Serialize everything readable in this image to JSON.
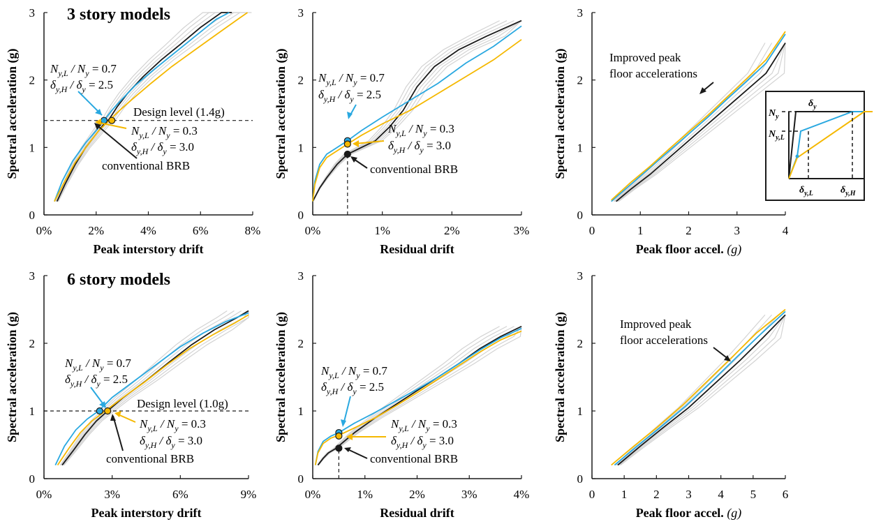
{
  "colors": {
    "conventional": "#1a1a1a",
    "ratio07": "#29a8e0",
    "ratio03": "#f5b800",
    "background_runs": "#d3d3d3"
  },
  "chart_data": [
    {
      "id": "p1",
      "type": "line",
      "title": "3 story models",
      "xlabel": "Peak interstory drift",
      "xlabel_unit": "",
      "ylabel": "Spectral acceleration (g)",
      "x_ticks": [
        "0%",
        "2%",
        "4%",
        "6%",
        "8%"
      ],
      "x_tick_values": [
        0,
        2,
        4,
        6,
        8
      ],
      "y_ticks": [
        "0",
        "1",
        "2",
        "3"
      ],
      "y_tick_values": [
        0,
        1,
        2,
        3
      ],
      "xlim": [
        0,
        8
      ],
      "ylim": [
        0,
        3
      ],
      "series": [
        {
          "key": "conventional",
          "x": [
            0.5,
            0.8,
            1.2,
            1.6,
            2.0,
            2.3,
            2.5,
            2.8,
            3.2,
            3.8,
            4.5,
            5.2,
            6.0,
            6.8,
            7.2
          ],
          "y": [
            0.2,
            0.45,
            0.75,
            1.0,
            1.2,
            1.35,
            1.42,
            1.6,
            1.8,
            2.05,
            2.3,
            2.52,
            2.78,
            3.0,
            3.0
          ]
        },
        {
          "key": "ratio07",
          "x": [
            0.4,
            0.7,
            1.1,
            1.6,
            2.0,
            2.3,
            2.6,
            3.0,
            3.5,
            4.2,
            5.0,
            5.8,
            6.6,
            7.1
          ],
          "y": [
            0.2,
            0.5,
            0.8,
            1.07,
            1.25,
            1.4,
            1.55,
            1.72,
            1.92,
            2.15,
            2.4,
            2.65,
            2.9,
            3.0
          ]
        },
        {
          "key": "ratio03",
          "x": [
            0.4,
            0.8,
            1.2,
            1.7,
            2.1,
            2.5,
            2.9,
            3.4,
            4.1,
            4.9,
            5.8,
            6.7,
            7.5,
            7.8
          ],
          "y": [
            0.2,
            0.5,
            0.78,
            1.05,
            1.25,
            1.4,
            1.55,
            1.72,
            1.95,
            2.2,
            2.45,
            2.7,
            2.92,
            3.0
          ]
        }
      ],
      "design_level": {
        "label": "Design level (1.4g)",
        "value": 1.4
      },
      "markers": [
        {
          "key": "ratio07",
          "x": 2.3,
          "y": 1.4
        },
        {
          "key": "ratio03",
          "x": 2.6,
          "y": 1.4
        }
      ],
      "annotations": {
        "a1_line1": "N",
        "a1_sub1": "y,L",
        "a1_mid": " / N",
        "a1_sub2": "y",
        "a1_val": " = 0.7",
        "a2_line1": "δ",
        "a2_sub1": "y,H",
        "a2_mid": " / δ",
        "a2_sub2": "y",
        "a2_val": " = 2.5",
        "b1_val": " = 0.3",
        "b2_val": " = 3.0",
        "conventional_label": "conventional BRB"
      }
    },
    {
      "id": "p2",
      "type": "line",
      "title": "",
      "xlabel": "Residual drift",
      "xlabel_unit": "",
      "ylabel": "Spectral acceleration (g)",
      "x_ticks": [
        "0%",
        "1%",
        "2%",
        "3%"
      ],
      "x_tick_values": [
        0,
        1,
        2,
        3
      ],
      "y_ticks": [
        "0",
        "1",
        "2",
        "3"
      ],
      "y_tick_values": [
        0,
        1,
        2,
        3
      ],
      "xlim": [
        0,
        3
      ],
      "ylim": [
        0,
        3
      ],
      "series": [
        {
          "key": "conventional",
          "x": [
            0,
            0.1,
            0.2,
            0.35,
            0.5,
            0.7,
            0.9,
            1.1,
            1.3,
            1.5,
            1.75,
            2.1,
            2.5,
            3.0
          ],
          "y": [
            0.2,
            0.4,
            0.55,
            0.75,
            0.9,
            1.0,
            1.1,
            1.3,
            1.55,
            1.9,
            2.2,
            2.45,
            2.65,
            2.88
          ]
        },
        {
          "key": "ratio07",
          "x": [
            0,
            0.03,
            0.1,
            0.2,
            0.35,
            0.5,
            0.7,
            1.0,
            1.4,
            1.8,
            2.2,
            2.6,
            3.0
          ],
          "y": [
            0.2,
            0.5,
            0.75,
            0.9,
            1.0,
            1.1,
            1.25,
            1.45,
            1.7,
            1.95,
            2.25,
            2.5,
            2.8
          ]
        },
        {
          "key": "ratio03",
          "x": [
            0,
            0.03,
            0.1,
            0.2,
            0.35,
            0.5,
            0.7,
            1.0,
            1.4,
            1.8,
            2.2,
            2.6,
            3.0
          ],
          "y": [
            0.2,
            0.45,
            0.7,
            0.85,
            0.95,
            1.05,
            1.18,
            1.35,
            1.55,
            1.8,
            2.05,
            2.3,
            2.6
          ]
        }
      ],
      "vline": {
        "x": 0.5
      },
      "markers": [
        {
          "key": "ratio07",
          "x": 0.5,
          "y": 1.1
        },
        {
          "key": "ratio03",
          "x": 0.5,
          "y": 1.05
        },
        {
          "key": "conventional",
          "x": 0.5,
          "y": 0.9
        }
      ],
      "annotations": {
        "b1_val": " = 0.3",
        "b2_val": " = 3.0",
        "a1_val": " = 0.7",
        "a2_val": " = 2.5",
        "conventional_label": "conventional BRB"
      }
    },
    {
      "id": "p3",
      "type": "line",
      "title": "",
      "xlabel": "Peak floor accel. ",
      "xlabel_unit": "(g)",
      "ylabel": "Spectral acceleration (g)",
      "x_ticks": [
        "0",
        "1",
        "2",
        "3",
        "4"
      ],
      "x_tick_values": [
        0,
        1,
        2,
        3,
        4
      ],
      "y_ticks": [
        "0",
        "1",
        "2",
        "3"
      ],
      "y_tick_values": [
        0,
        1,
        2,
        3
      ],
      "xlim": [
        0,
        4
      ],
      "ylim": [
        0,
        3
      ],
      "series": [
        {
          "key": "conventional",
          "x": [
            0.5,
            0.8,
            1.2,
            1.6,
            2.0,
            2.4,
            2.8,
            3.2,
            3.6,
            4.0
          ],
          "y": [
            0.2,
            0.38,
            0.6,
            0.85,
            1.1,
            1.35,
            1.6,
            1.85,
            2.1,
            2.55
          ]
        },
        {
          "key": "ratio07",
          "x": [
            0.4,
            0.8,
            1.2,
            1.6,
            2.0,
            2.4,
            2.8,
            3.2,
            3.6,
            4.0
          ],
          "y": [
            0.2,
            0.45,
            0.7,
            0.95,
            1.2,
            1.45,
            1.72,
            1.98,
            2.25,
            2.68
          ]
        },
        {
          "key": "ratio03",
          "x": [
            0.4,
            0.8,
            1.2,
            1.6,
            2.0,
            2.4,
            2.8,
            3.2,
            3.6,
            4.0
          ],
          "y": [
            0.22,
            0.48,
            0.72,
            0.98,
            1.23,
            1.48,
            1.75,
            2.02,
            2.3,
            2.72
          ]
        }
      ],
      "annotation": "Improved peak floor accelerations"
    },
    {
      "id": "p4",
      "type": "line",
      "title": "6 story models",
      "xlabel": "Peak interstory drift",
      "xlabel_unit": "",
      "ylabel": "Spectral acceleration (g)",
      "x_ticks": [
        "0%",
        "3%",
        "6%",
        "9%"
      ],
      "x_tick_values": [
        0,
        3,
        6,
        9
      ],
      "y_ticks": [
        "0",
        "1",
        "2",
        "3"
      ],
      "y_tick_values": [
        0,
        1,
        2,
        3
      ],
      "xlim": [
        0,
        9
      ],
      "ylim": [
        0,
        3
      ],
      "series": [
        {
          "key": "conventional",
          "x": [
            0.8,
            1.3,
            1.8,
            2.3,
            2.8,
            3.5,
            4.5,
            5.5,
            6.5,
            7.5,
            8.5,
            9.0
          ],
          "y": [
            0.2,
            0.42,
            0.65,
            0.85,
            1.0,
            1.2,
            1.45,
            1.72,
            1.98,
            2.2,
            2.38,
            2.48
          ]
        },
        {
          "key": "ratio07",
          "x": [
            0.5,
            0.9,
            1.4,
            1.9,
            2.4,
            3.0,
            4.0,
            5.0,
            6.0,
            7.0,
            8.0,
            9.0
          ],
          "y": [
            0.2,
            0.48,
            0.72,
            0.88,
            1.0,
            1.2,
            1.45,
            1.7,
            1.95,
            2.15,
            2.32,
            2.45
          ]
        },
        {
          "key": "ratio03",
          "x": [
            0.6,
            1.1,
            1.6,
            2.1,
            2.7,
            3.4,
            4.4,
            5.4,
            6.4,
            7.4,
            8.4,
            9.0
          ],
          "y": [
            0.2,
            0.45,
            0.68,
            0.85,
            1.0,
            1.18,
            1.42,
            1.68,
            1.92,
            2.12,
            2.3,
            2.42
          ]
        }
      ],
      "design_level": {
        "label": "Design level (1.0g)",
        "value": 1.0
      },
      "markers": [
        {
          "key": "ratio07",
          "x": 2.45,
          "y": 1.0
        },
        {
          "key": "ratio03",
          "x": 2.8,
          "y": 1.0
        }
      ],
      "annotations": {
        "a1_val": " = 0.7",
        "a2_val": " = 2.5",
        "b1_val": " = 0.3",
        "b2_val": " = 3.0",
        "conventional_label": "conventional BRB"
      }
    },
    {
      "id": "p5",
      "type": "line",
      "title": "",
      "xlabel": "Residual drift",
      "xlabel_unit": "",
      "ylabel": "Spectral acceleration (g)",
      "x_ticks": [
        "0%",
        "1%",
        "2%",
        "3%",
        "4%"
      ],
      "x_tick_values": [
        0,
        1,
        2,
        3,
        4
      ],
      "y_ticks": [
        "0",
        "1",
        "2",
        "3"
      ],
      "y_tick_values": [
        0,
        1,
        2,
        3
      ],
      "xlim": [
        0,
        4
      ],
      "ylim": [
        0,
        3
      ],
      "series": [
        {
          "key": "conventional",
          "x": [
            0.1,
            0.2,
            0.3,
            0.45,
            0.6,
            0.8,
            1.2,
            1.6,
            2.0,
            2.4,
            2.8,
            3.2,
            3.6,
            4.0
          ],
          "y": [
            0.2,
            0.3,
            0.38,
            0.45,
            0.55,
            0.68,
            0.9,
            1.1,
            1.3,
            1.5,
            1.7,
            1.92,
            2.1,
            2.25
          ]
        },
        {
          "key": "ratio07",
          "x": [
            0.05,
            0.1,
            0.2,
            0.35,
            0.5,
            0.8,
            1.2,
            1.6,
            2.0,
            2.4,
            2.8,
            3.2,
            3.6,
            4.0
          ],
          "y": [
            0.2,
            0.4,
            0.55,
            0.63,
            0.68,
            0.82,
            0.98,
            1.15,
            1.32,
            1.5,
            1.7,
            1.9,
            2.08,
            2.22
          ]
        },
        {
          "key": "ratio03",
          "x": [
            0.05,
            0.1,
            0.2,
            0.35,
            0.5,
            0.8,
            1.2,
            1.6,
            2.0,
            2.4,
            2.8,
            3.2,
            3.6,
            4.0
          ],
          "y": [
            0.2,
            0.38,
            0.52,
            0.6,
            0.64,
            0.75,
            0.9,
            1.08,
            1.27,
            1.47,
            1.67,
            1.87,
            2.05,
            2.18
          ]
        }
      ],
      "vline": {
        "x": 0.5
      },
      "markers": [
        {
          "key": "ratio07",
          "x": 0.5,
          "y": 0.68
        },
        {
          "key": "ratio03",
          "x": 0.5,
          "y": 0.63
        },
        {
          "key": "conventional",
          "x": 0.5,
          "y": 0.45
        }
      ],
      "annotations": {
        "a1_val": " = 0.7",
        "a2_val": " = 2.5",
        "b1_val": " = 0.3",
        "b2_val": " = 3.0",
        "conventional_label": "conventional BRB"
      }
    },
    {
      "id": "p6",
      "type": "line",
      "title": "",
      "xlabel": "Peak floor accel. ",
      "xlabel_unit": "(g)",
      "ylabel": "Spectral acceleration (g)",
      "x_ticks": [
        "0",
        "1",
        "2",
        "3",
        "4",
        "5",
        "6"
      ],
      "x_tick_values": [
        0,
        1,
        2,
        3,
        4,
        5,
        6
      ],
      "y_ticks": [
        "0",
        "1",
        "2",
        "3"
      ],
      "y_tick_values": [
        0,
        1,
        2,
        3
      ],
      "xlim": [
        0,
        6
      ],
      "ylim": [
        0,
        3
      ],
      "series": [
        {
          "key": "conventional",
          "x": [
            0.8,
            1.5,
            2.2,
            3.0,
            3.8,
            4.6,
            5.3,
            6.0
          ],
          "y": [
            0.2,
            0.48,
            0.75,
            1.05,
            1.4,
            1.75,
            2.08,
            2.42
          ]
        },
        {
          "key": "ratio07",
          "x": [
            0.7,
            1.4,
            2.1,
            2.9,
            3.7,
            4.5,
            5.2,
            6.0
          ],
          "y": [
            0.2,
            0.48,
            0.75,
            1.07,
            1.43,
            1.8,
            2.12,
            2.47
          ]
        },
        {
          "key": "ratio03",
          "x": [
            0.6,
            1.3,
            2.0,
            2.8,
            3.6,
            4.4,
            5.1,
            6.0
          ],
          "y": [
            0.2,
            0.48,
            0.75,
            1.08,
            1.45,
            1.82,
            2.15,
            2.5
          ]
        }
      ],
      "annotation_line1": "Improved peak",
      "annotation_line2": "floor accelerations"
    }
  ],
  "inset": {
    "label_Ny": "N",
    "label_Ny_sub": "y",
    "label_NyL": "N",
    "label_NyL_sub": "y,L",
    "label_dy": "δ",
    "label_dy_sub": "y",
    "label_dyL": "δ",
    "label_dyL_sub": "y,L",
    "label_dyH": "δ",
    "label_dyH_sub": "y,H"
  }
}
